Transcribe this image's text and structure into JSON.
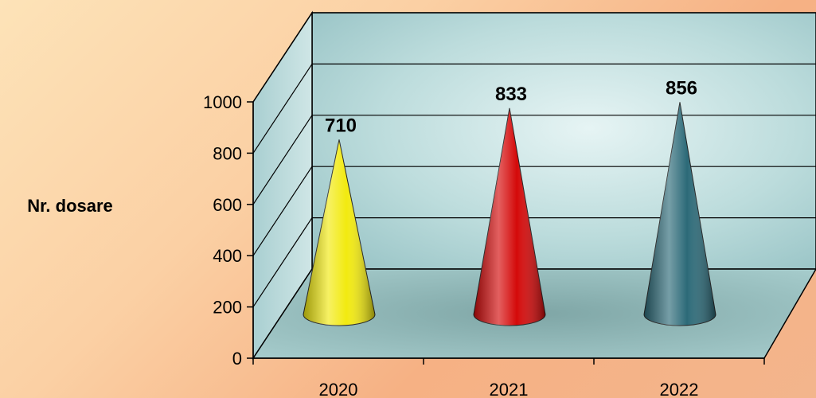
{
  "chart_data": {
    "type": "bar",
    "bar_shape": "cone-3d",
    "categories": [
      "2020",
      "2021",
      "2022"
    ],
    "values": [
      710,
      833,
      856
    ],
    "colors": [
      "#f2ea10",
      "#d40a0a",
      "#2c6a78"
    ],
    "ylabel": "Nr. dosare",
    "xlabel": "",
    "ylim": [
      0,
      1000
    ],
    "yticks": [
      0,
      200,
      400,
      600,
      800,
      1000
    ],
    "grid": true,
    "legend": "none"
  }
}
